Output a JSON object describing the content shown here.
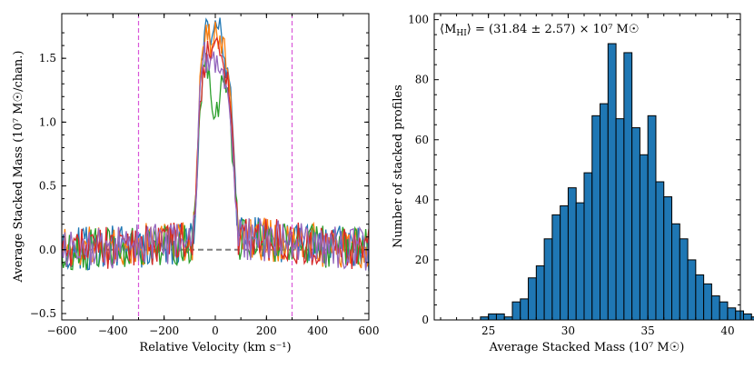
{
  "chart_data": [
    {
      "type": "line",
      "xlabel": "Relative Velocity (km s⁻¹)",
      "ylabel": "Average Stacked Mass (10⁷ M☉/chan.)",
      "xlim": [
        -600,
        600
      ],
      "ylim": [
        -0.55,
        1.85
      ],
      "xticks": [
        -600,
        -400,
        -200,
        0,
        200,
        400,
        600
      ],
      "yticks": [
        -0.5,
        0.0,
        0.5,
        1.0,
        1.5
      ],
      "xtick_labels": [
        "−600",
        "−400",
        "−200",
        "0",
        "200",
        "400",
        "600"
      ],
      "ytick_labels": [
        "−0.5",
        "0.0",
        "0.5",
        "1.0",
        "1.5"
      ],
      "vlines": [
        -300,
        300
      ],
      "vline_color": "#d957d9",
      "baseline": {
        "from": -600,
        "to": 600,
        "y": 0.0,
        "color": "#7f7f7f"
      },
      "x": [
        -600,
        -90,
        -75,
        -60,
        -45,
        -30,
        -15,
        0,
        15,
        30,
        45,
        60,
        75,
        90,
        600
      ],
      "series": [
        {
          "color": "#1f77b4",
          "values": [
            0,
            0.05,
            0.45,
            1.2,
            1.65,
            1.72,
            1.6,
            1.78,
            1.82,
            1.5,
            1.45,
            1.2,
            0.6,
            0.1,
            0
          ]
        },
        {
          "color": "#ff7f0e",
          "values": [
            0,
            0.06,
            0.5,
            1.25,
            1.6,
            1.75,
            1.55,
            1.7,
            1.6,
            1.65,
            1.5,
            1.1,
            0.55,
            0.1,
            0
          ]
        },
        {
          "color": "#2ca02c",
          "values": [
            0,
            0.04,
            0.4,
            1.1,
            1.5,
            1.45,
            1.2,
            1.0,
            1.15,
            1.4,
            1.3,
            1.0,
            0.5,
            0.08,
            0
          ]
        },
        {
          "color": "#d62728",
          "values": [
            0,
            0.05,
            0.45,
            1.15,
            1.4,
            1.6,
            1.45,
            1.6,
            1.55,
            1.35,
            1.4,
            1.15,
            0.55,
            0.1,
            0
          ]
        },
        {
          "color": "#9467bd",
          "values": [
            0,
            0.05,
            0.42,
            1.2,
            1.55,
            1.45,
            1.38,
            1.5,
            1.3,
            1.45,
            1.25,
            1.05,
            0.5,
            0.09,
            0
          ]
        }
      ]
    },
    {
      "type": "bar",
      "xlabel": "Average Stacked Mass (10⁷ M☉)",
      "ylabel": "Number of stacked profiles",
      "annotation": "⟨M_HI⟩ = (31.84 ± 2.57) × 10⁷ M☉",
      "annotation_parts": {
        "lhs": "⟨M",
        "sub": "HI",
        "rhs": "⟩ = (31.84 ± 2.57) × 10⁷ M☉"
      },
      "xlim": [
        21.6,
        40.8
      ],
      "ylim": [
        0,
        102
      ],
      "xticks": [
        25,
        30,
        35,
        40
      ],
      "yticks": [
        0,
        20,
        40,
        60,
        80,
        100
      ],
      "bin_width": 0.5,
      "bin_start": 22.0,
      "color": "#1f77b4",
      "values": [
        0,
        0,
        0,
        0,
        0,
        1,
        2,
        2,
        1,
        6,
        7,
        14,
        18,
        27,
        35,
        38,
        44,
        39,
        49,
        68,
        72,
        92,
        67,
        89,
        64,
        55,
        68,
        46,
        41,
        32,
        27,
        20,
        15,
        12,
        8,
        6,
        4,
        3,
        2,
        1
      ]
    }
  ]
}
